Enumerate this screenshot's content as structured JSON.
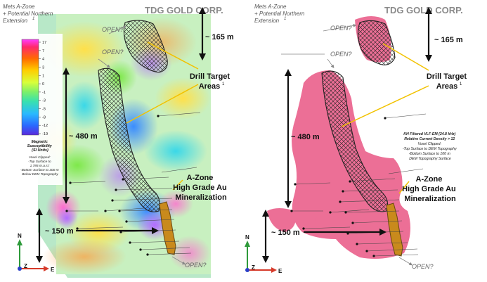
{
  "brand": {
    "name": "TDG GOLD CORP.",
    "accent_orange": "#e8642a",
    "text_gray": "#8a8a8a"
  },
  "left_panel": {
    "title_lines": [
      "Mets A-Zone",
      "+ Potential Northern",
      "Extension"
    ],
    "title_sup": "1",
    "open_labels": [
      "OPEN?",
      "OPEN?",
      "OPEN?"
    ],
    "dim_top": "~ 165 m",
    "dim_mid": "~ 480 m",
    "dim_bottom": "~ 150 m",
    "drill_label_lines": [
      "Drill Target",
      "Areas"
    ],
    "drill_sup": "1",
    "azone_lines": [
      "A-Zone",
      "High Grade Au",
      "Mineralization"
    ],
    "legend": {
      "ticks": [
        "17",
        "7",
        "4",
        "3",
        "1",
        "0",
        "-1",
        "-3",
        "-5",
        "-8",
        "-12",
        "-19"
      ],
      "title_lines": [
        "Magnetic",
        "Susceptibility",
        "(SI Units)"
      ],
      "notes": [
        "Voxel Clipped:",
        "-Top Surface to",
        "1,785 m.a.s.l",
        "-Bottom Surface to 300 m",
        "Below DEM Topography"
      ]
    },
    "axes": {
      "n": "N",
      "z": "Z",
      "e": "E"
    }
  },
  "right_panel": {
    "title_lines": [
      "Mets A-Zone",
      "+ Potential Northern",
      "Extension"
    ],
    "title_sup": "1",
    "open_labels": [
      "OPEN?",
      "OPEN?",
      "OPEN?"
    ],
    "dim_top": "~ 165 m",
    "dim_mid": "~ 480 m",
    "dim_bottom": "~ 150 m",
    "drill_label_lines": [
      "Drill Target",
      "Areas"
    ],
    "drill_sup": "1",
    "azone_lines": [
      "A-Zone",
      "High Grade Au",
      "Mineralization"
    ],
    "notes": [
      "KH Filtered VLF-EM (24.8 kHz)",
      "Relative Current Density > 12",
      "Voxel Clipped:",
      "-Top Surface to DEM Topography",
      "-Bottom Surface to 100 m",
      "DEM Topography Surface"
    ],
    "axes": {
      "n": "N",
      "z": "Z",
      "e": "E"
    }
  },
  "colors": {
    "yellow_line": "#f2c200",
    "vlf_pink": "#ec6f96",
    "gold_body": "#c98a1c",
    "axis_n": "#2e9a3a",
    "axis_e": "#d63a2a",
    "axis_z": "#2a40c8"
  }
}
